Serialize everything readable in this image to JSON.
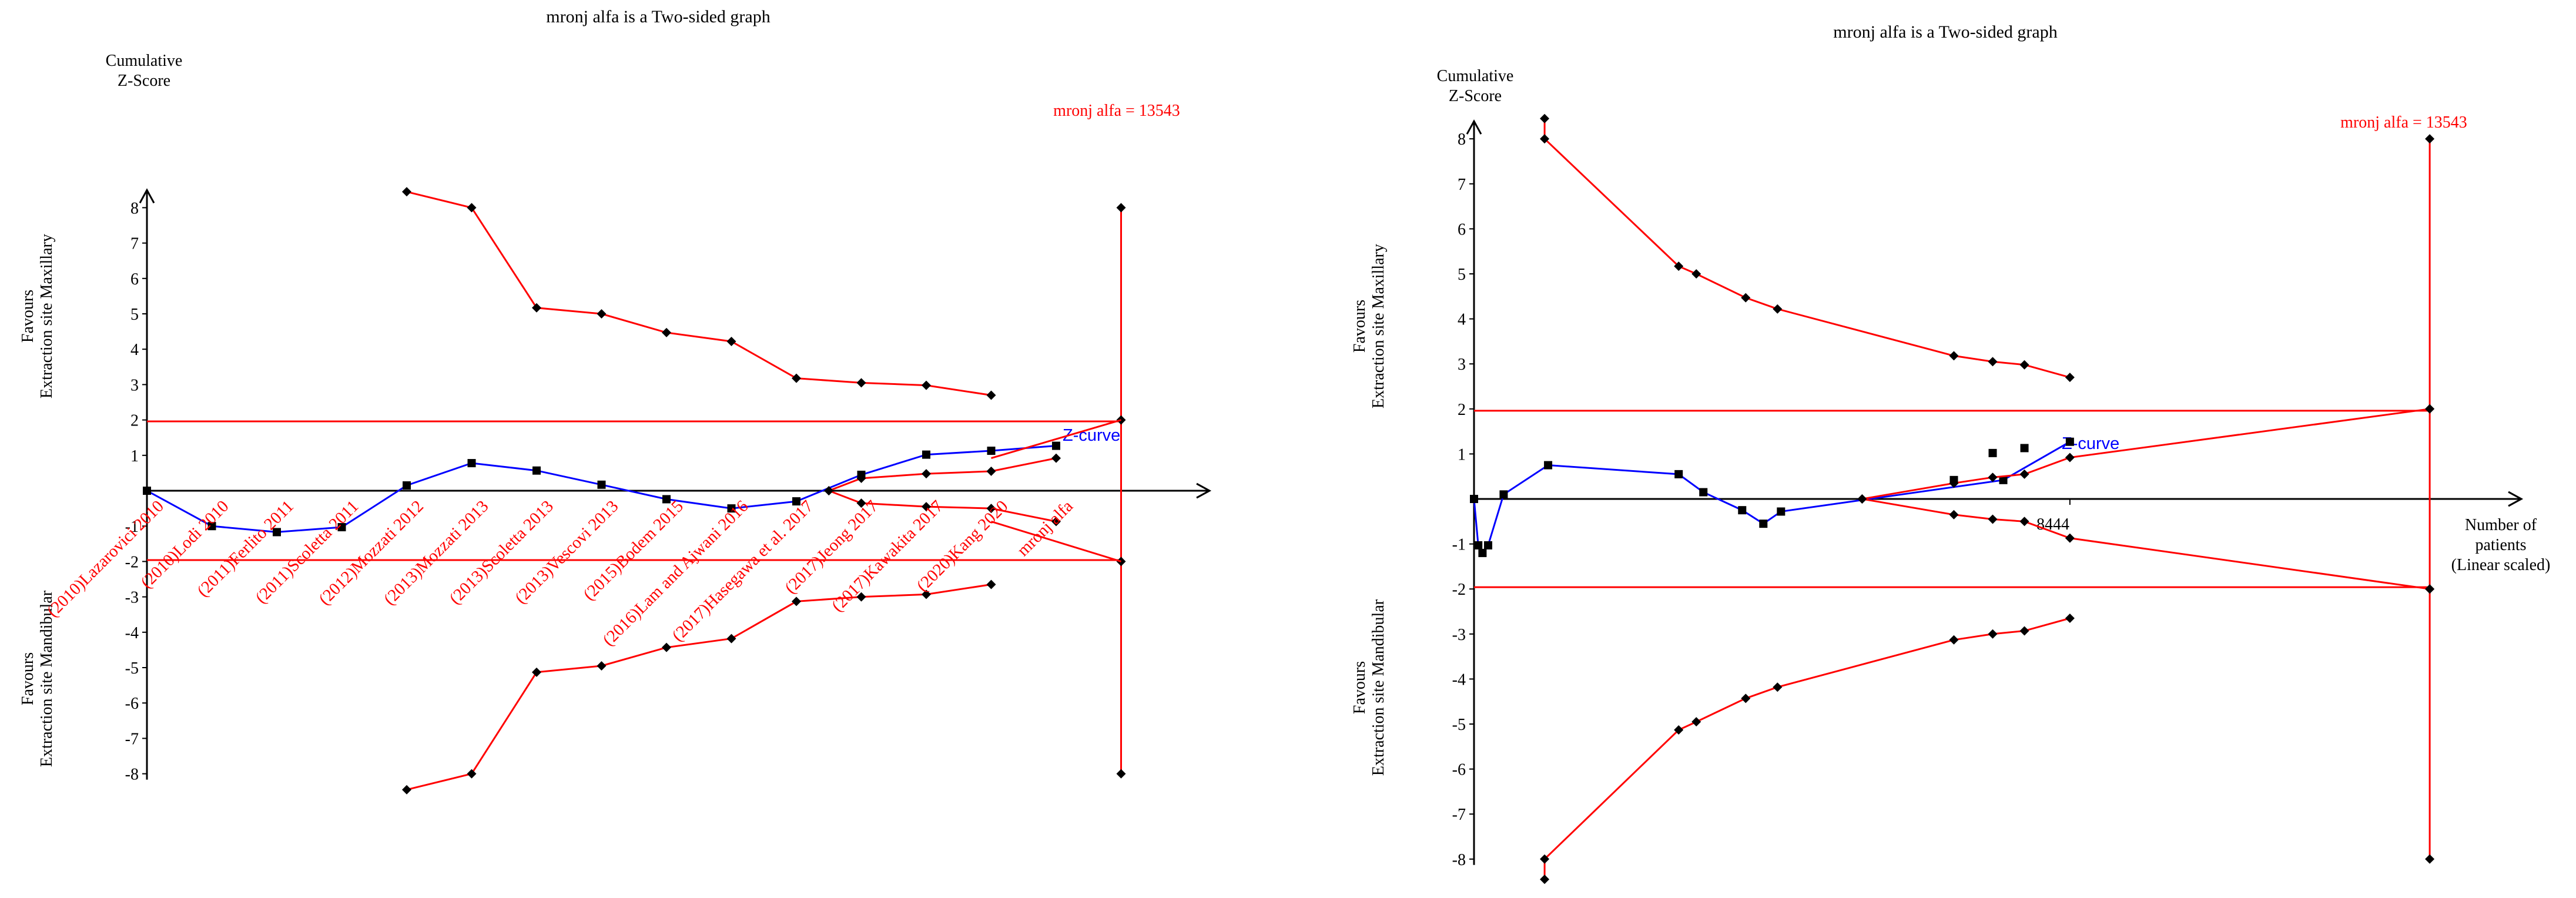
{
  "colors": {
    "boundary": "#ff0000",
    "zcurve": "#0000ff",
    "axis": "#000000",
    "marker": "#000000"
  },
  "chart_data": [
    {
      "type": "line",
      "title": "mronj alfa is a Two-sided graph",
      "ylabel_line1": "Cumulative",
      "ylabel_line2": "Z-Score",
      "favours_top_line1": "Favours",
      "favours_top_line2": "Extraction site Maxillary",
      "favours_bottom_line1": "Favours",
      "favours_bottom_line2": "Extraction site Mandibular",
      "ylim": [
        -8,
        8
      ],
      "yticks": [
        "-8",
        "-7",
        "-6",
        "-5",
        "-4",
        "-3",
        "-2",
        "-1",
        "1",
        "2",
        "3",
        "4",
        "5",
        "6",
        "7",
        "8"
      ],
      "x_categories": [
        "(2010)Lazarovici 2010",
        "(2010)Lodi 2010",
        "(2011)Ferlito 2011",
        "(2011)Scoletta 2011",
        "(2012)Mozzati 2012",
        "(2013)Mozzati 2013",
        "(2013)Scoletta 2013",
        "(2013)Vescovi 2013",
        "(2015)Bodem 2015",
        "(2016)Lam and Ajwani 2016",
        "(2017)Hasegawa et al. 2017",
        "(2017)Jeong 2017",
        "(2017)Kawakita 2017",
        "(2020)Kang 2020",
        "mronj alfa"
      ],
      "series": [
        {
          "kind": "zcurve",
          "name": "Z-curve",
          "x": [
            0,
            1,
            2,
            3,
            4,
            5,
            6,
            7,
            8,
            9,
            10,
            11,
            12,
            13,
            14
          ],
          "y": [
            0.0,
            -1.0,
            -1.17,
            -1.03,
            0.15,
            0.78,
            0.57,
            0.17,
            -0.24,
            -0.5,
            -0.3,
            0.45,
            1.02,
            1.13,
            1.27
          ]
        },
        {
          "kind": "upper",
          "x": [
            4,
            5,
            6,
            7,
            8,
            9,
            10,
            11,
            12,
            13
          ],
          "y": [
            8.45,
            8.0,
            5.17,
            5.0,
            4.47,
            4.22,
            3.18,
            3.05,
            2.98,
            2.7
          ]
        },
        {
          "kind": "lower",
          "x": [
            4,
            5,
            6,
            7,
            8,
            9,
            10,
            11,
            12,
            13
          ],
          "y": [
            -8.45,
            -8.0,
            -5.13,
            -4.95,
            -4.43,
            -4.18,
            -3.13,
            -3.0,
            -2.93,
            -2.65
          ]
        },
        {
          "kind": "futility_upper",
          "x": [
            10.5,
            11,
            12,
            13,
            14
          ],
          "y": [
            0.0,
            0.35,
            0.48,
            0.55,
            0.92
          ]
        },
        {
          "kind": "futility_lower",
          "x": [
            10.5,
            11,
            12,
            13,
            14
          ],
          "y": [
            0.0,
            -0.35,
            -0.45,
            -0.5,
            -0.87
          ]
        },
        {
          "kind": "futility_tail",
          "x": [
            13,
            15
          ],
          "y": [
            0.92,
            2.0
          ]
        },
        {
          "kind": "futility_tail",
          "x": [
            13,
            15
          ],
          "y": [
            -0.87,
            -2.0
          ]
        }
      ],
      "conventional_boundary": [
        1.96,
        -1.96
      ],
      "ris_x": 15,
      "ris_label": "mronj alfa = 13543",
      "zcurve_label": "Z-curve"
    },
    {
      "type": "line",
      "title": "mronj alfa is a Two-sided graph",
      "ylabel_line1": "Cumulative",
      "ylabel_line2": "Z-Score",
      "favours_top_line1": "Favours",
      "favours_top_line2": "Extraction site Maxillary",
      "favours_bottom_line1": "Favours",
      "favours_bottom_line2": "Extraction site Mandibular",
      "xlabel_line1": "Number of",
      "xlabel_line2": "patients",
      "xlabel_line3": "(Linear scaled)",
      "x_tick_label": "8444",
      "x_tick_value": 8444,
      "ylim": [
        -8,
        8
      ],
      "xlim": [
        0,
        13543
      ],
      "yticks": [
        "-8",
        "-7",
        "-6",
        "-5",
        "-4",
        "-3",
        "-2",
        "-1",
        "1",
        "2",
        "3",
        "4",
        "5",
        "6",
        "7",
        "8"
      ],
      "series": [
        {
          "kind": "zcurve",
          "name": "Z-curve",
          "x": [
            0,
            60,
            120,
            200,
            420,
            1050,
            2900,
            3250,
            3800,
            4100,
            4350,
            7500,
            8444
          ],
          "y": [
            0.0,
            -1.03,
            -1.2,
            -1.03,
            0.1,
            0.75,
            0.55,
            0.15,
            -0.25,
            -0.55,
            -0.28,
            0.42,
            1.27
          ]
        },
        {
          "kind": "upper",
          "x": [
            1000,
            1000,
            2900,
            3150,
            3850,
            4300,
            6800,
            7350,
            7800,
            8444
          ],
          "y": [
            8.45,
            8.0,
            5.17,
            5.0,
            4.47,
            4.22,
            3.18,
            3.05,
            2.98,
            2.7
          ]
        },
        {
          "kind": "lower",
          "x": [
            1000,
            1000,
            2900,
            3150,
            3850,
            4300,
            6800,
            7350,
            7800,
            8444
          ],
          "y": [
            -8.45,
            -8.0,
            -5.13,
            -4.95,
            -4.43,
            -4.18,
            -3.13,
            -3.0,
            -2.93,
            -2.65
          ]
        },
        {
          "kind": "futility_upper",
          "x": [
            5500,
            6800,
            7350,
            7800,
            8444,
            13543
          ],
          "y": [
            0.0,
            0.35,
            0.48,
            0.55,
            0.92,
            2.0
          ]
        },
        {
          "kind": "futility_lower",
          "x": [
            5500,
            6800,
            7350,
            7800,
            8444,
            13543
          ],
          "y": [
            0.0,
            -0.35,
            -0.45,
            -0.5,
            -0.87,
            -2.0
          ]
        }
      ],
      "extra_zcurve_points": [
        {
          "x": 6800,
          "y": 0.42
        },
        {
          "x": 7350,
          "y": 1.02
        },
        {
          "x": 7800,
          "y": 1.13
        }
      ],
      "conventional_boundary": [
        1.96,
        -1.96
      ],
      "ris_x": 13543,
      "ris_label": "mronj alfa = 13543",
      "zcurve_label": "Z-curve"
    }
  ]
}
